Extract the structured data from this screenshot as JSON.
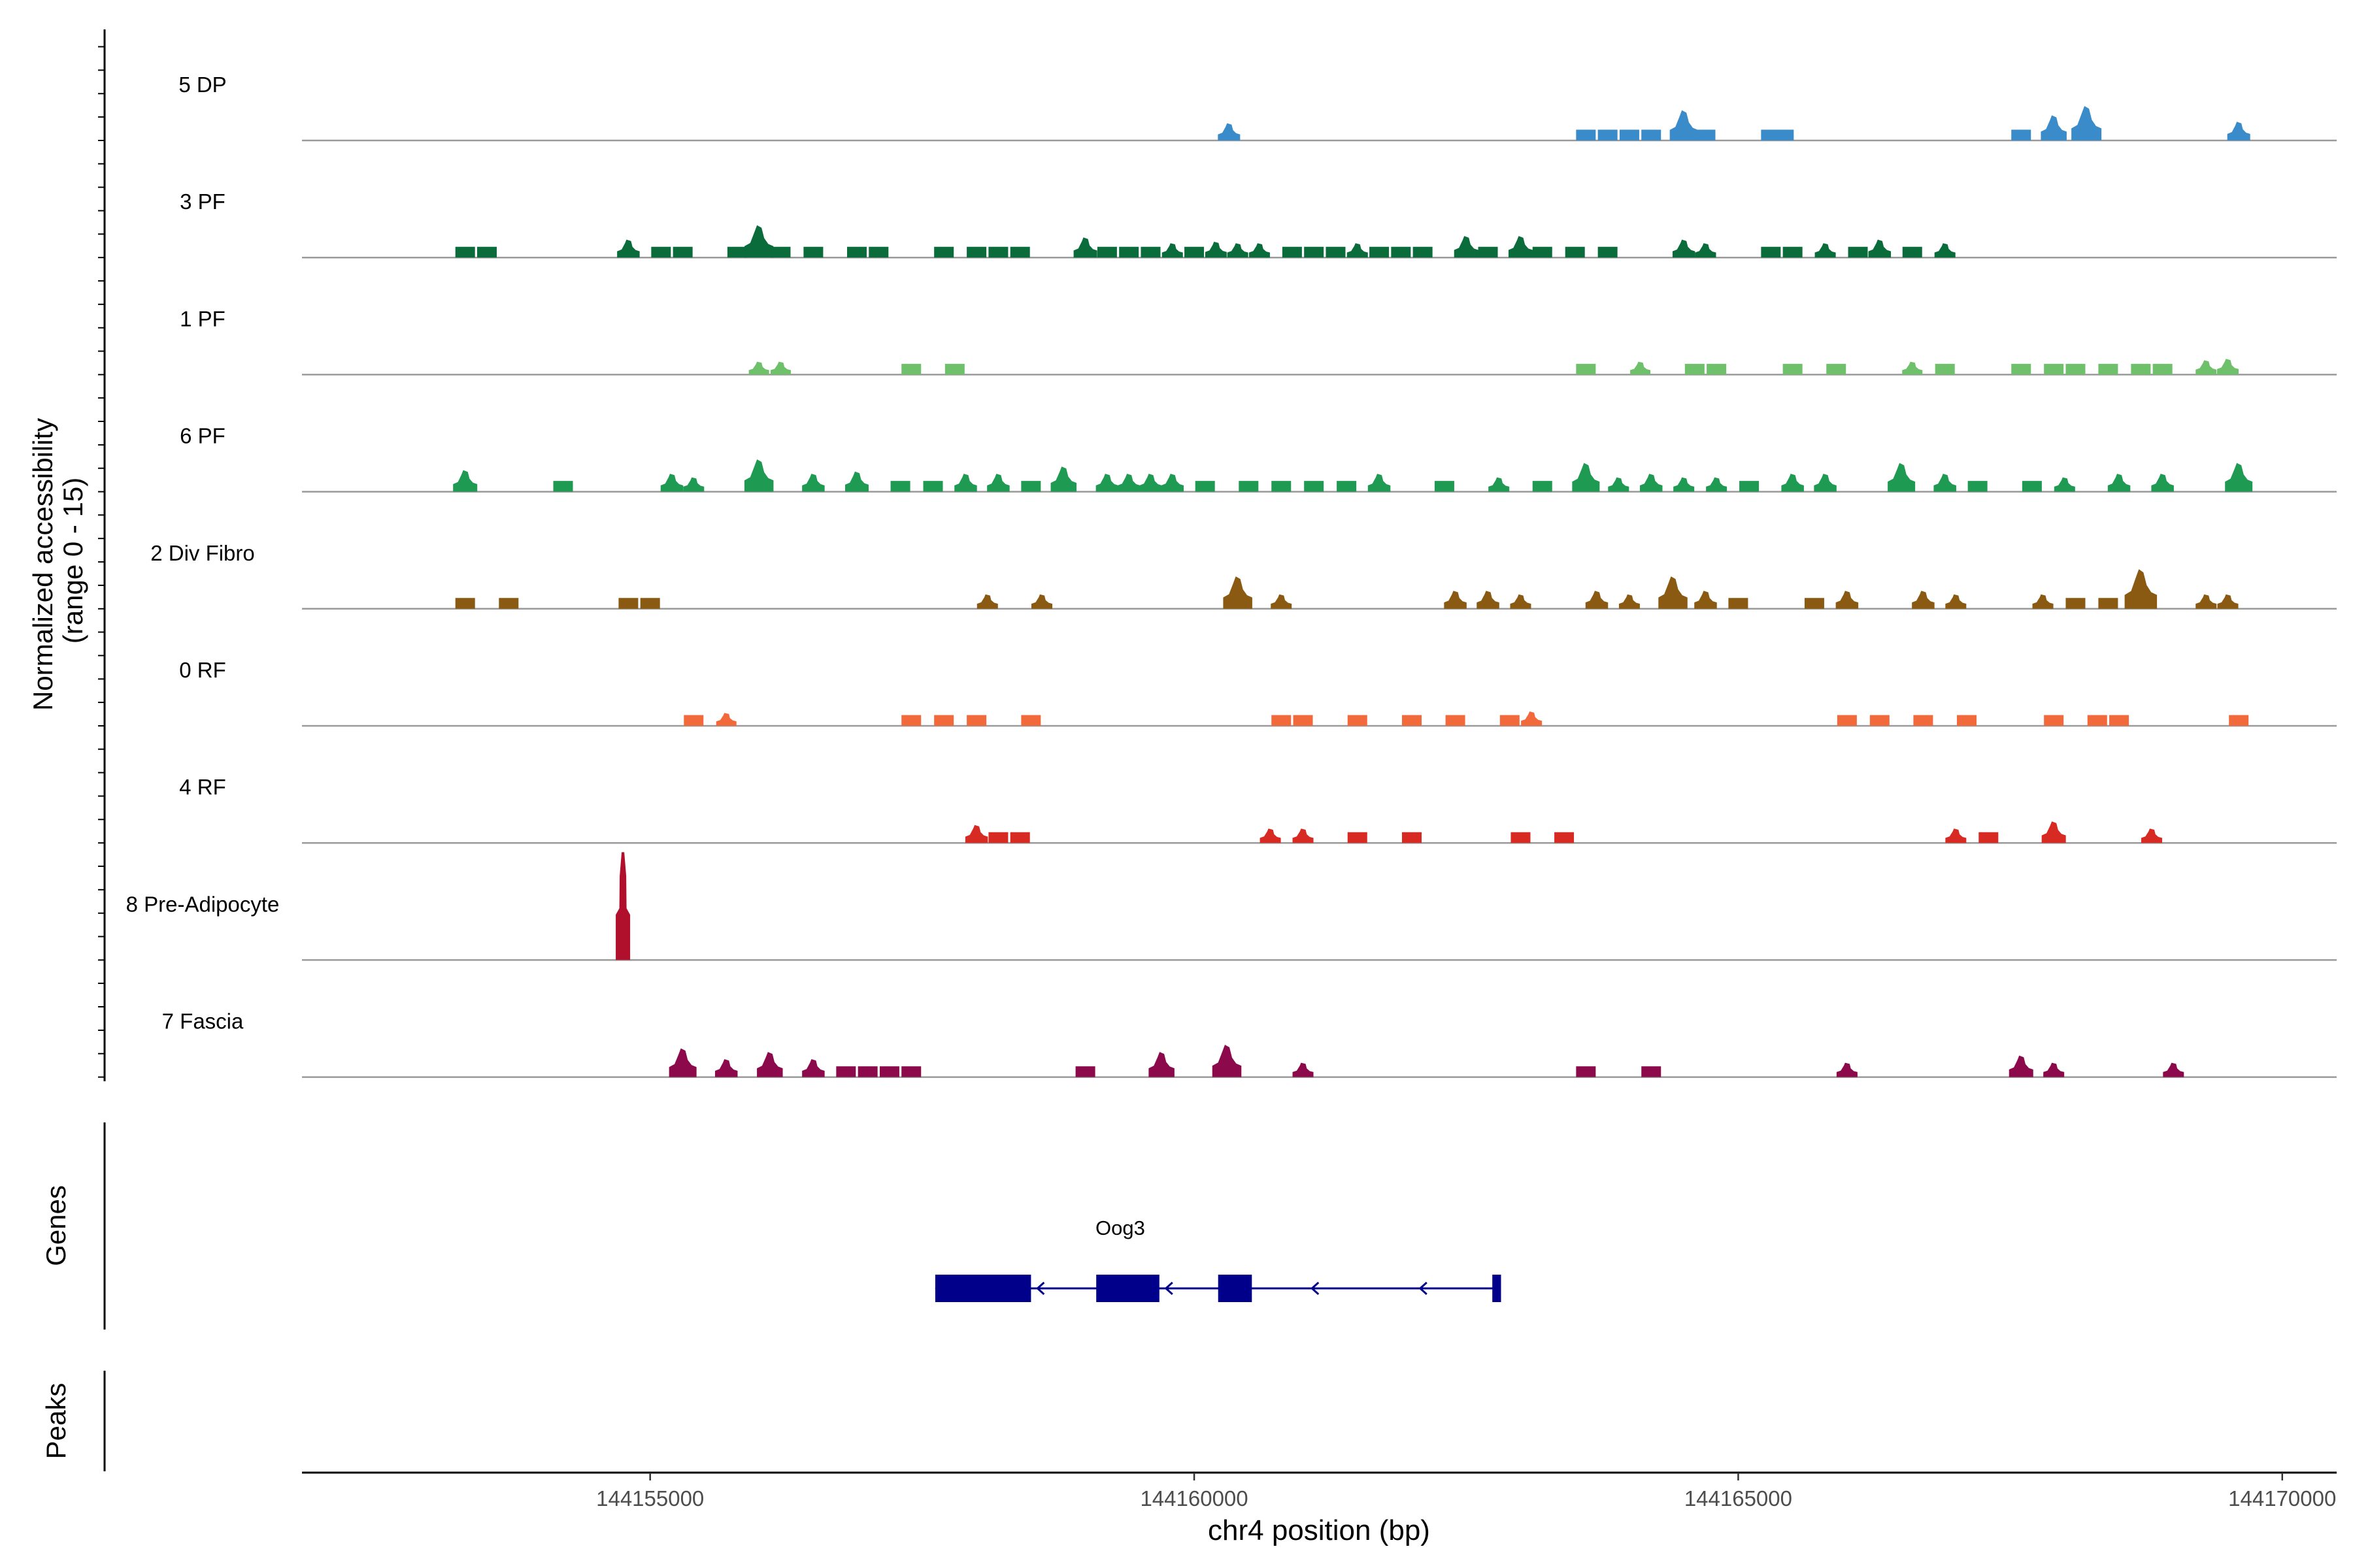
{
  "chart_data": {
    "type": "area",
    "subtype": "genome-coverage-track",
    "y_axis_label_line1": "Normalized accessibility",
    "y_axis_label_line2": "(range 0 - 15)",
    "ylim": [
      0,
      15
    ],
    "x_axis_label": "chr4 position (bp)",
    "xlim": [
      144151800,
      144170500
    ],
    "x_ticks": [
      144155000,
      144160000,
      144165000,
      144170000
    ],
    "x_tick_labels": [
      "144155000",
      "144160000",
      "144165000",
      "144170000"
    ],
    "genes_label": "Genes",
    "peaks_label": "Peaks",
    "tracks": [
      {
        "name": "5 DP",
        "color": "#3a8bc9",
        "peaks": [
          [
            144160320,
            2.4
          ],
          [
            144163600,
            1.5
          ],
          [
            144163800,
            1.5
          ],
          [
            144164000,
            1.5
          ],
          [
            144164200,
            1.5
          ],
          [
            144164500,
            4.2
          ],
          [
            144164700,
            1.5
          ],
          [
            144165300,
            1.5
          ],
          [
            144165420,
            1.5
          ],
          [
            144167600,
            1.5
          ],
          [
            144167900,
            3.5
          ],
          [
            144168200,
            4.8
          ],
          [
            144169600,
            2.6
          ]
        ]
      },
      {
        "name": "3 PF",
        "color": "#0a6b3b",
        "peaks": [
          [
            144153300,
            1.5
          ],
          [
            144153500,
            1.5
          ],
          [
            144154800,
            2.5
          ],
          [
            144155100,
            1.5
          ],
          [
            144155300,
            1.5
          ],
          [
            144155800,
            1.5
          ],
          [
            144156000,
            4.5
          ],
          [
            144156200,
            1.5
          ],
          [
            144156500,
            1.5
          ],
          [
            144156900,
            1.5
          ],
          [
            144157100,
            1.5
          ],
          [
            144157700,
            1.5
          ],
          [
            144158000,
            1.5
          ],
          [
            144158200,
            1.5
          ],
          [
            144158400,
            1.5
          ],
          [
            144159000,
            2.8
          ],
          [
            144159200,
            1.5
          ],
          [
            144159400,
            1.5
          ],
          [
            144159600,
            1.5
          ],
          [
            144159800,
            2.0
          ],
          [
            144160000,
            1.5
          ],
          [
            144160200,
            2.2
          ],
          [
            144160400,
            2.0
          ],
          [
            144160600,
            2.0
          ],
          [
            144160900,
            1.5
          ],
          [
            144161100,
            1.5
          ],
          [
            144161300,
            1.5
          ],
          [
            144161500,
            2.0
          ],
          [
            144161700,
            1.5
          ],
          [
            144161900,
            1.5
          ],
          [
            144162100,
            1.5
          ],
          [
            144162500,
            3.0
          ],
          [
            144162700,
            1.5
          ],
          [
            144163000,
            3.0
          ],
          [
            144163200,
            1.5
          ],
          [
            144163500,
            1.5
          ],
          [
            144163800,
            1.5
          ],
          [
            144164500,
            2.5
          ],
          [
            144164700,
            2.0
          ],
          [
            144165300,
            1.5
          ],
          [
            144165500,
            1.5
          ],
          [
            144165800,
            2.0
          ],
          [
            144166100,
            1.5
          ],
          [
            144166300,
            2.5
          ],
          [
            144166600,
            1.5
          ],
          [
            144166900,
            2.0
          ]
        ]
      },
      {
        "name": "1 PF",
        "color": "#6fc06a",
        "peaks": [
          [
            144156000,
            1.8
          ],
          [
            144156200,
            1.8
          ],
          [
            144157400,
            1.5
          ],
          [
            144157800,
            1.5
          ],
          [
            144163600,
            1.5
          ],
          [
            144164100,
            1.8
          ],
          [
            144164600,
            1.5
          ],
          [
            144164800,
            1.5
          ],
          [
            144165500,
            1.5
          ],
          [
            144165900,
            1.5
          ],
          [
            144166600,
            1.8
          ],
          [
            144166900,
            1.5
          ],
          [
            144167600,
            1.5
          ],
          [
            144167900,
            1.5
          ],
          [
            144168100,
            1.5
          ],
          [
            144168400,
            1.5
          ],
          [
            144168700,
            1.5
          ],
          [
            144168900,
            1.5
          ],
          [
            144169300,
            2.0
          ],
          [
            144169500,
            2.2
          ]
        ]
      },
      {
        "name": "6 PF",
        "color": "#1f9a52",
        "peaks": [
          [
            144153300,
            3.0
          ],
          [
            144154200,
            1.5
          ],
          [
            144155200,
            2.5
          ],
          [
            144155400,
            2.0
          ],
          [
            144156000,
            4.5
          ],
          [
            144156500,
            2.5
          ],
          [
            144156900,
            2.8
          ],
          [
            144157300,
            1.5
          ],
          [
            144157600,
            1.5
          ],
          [
            144157900,
            2.5
          ],
          [
            144158200,
            2.5
          ],
          [
            144158500,
            1.5
          ],
          [
            144158800,
            3.5
          ],
          [
            144159200,
            2.5
          ],
          [
            144159400,
            2.5
          ],
          [
            144159600,
            2.5
          ],
          [
            144159800,
            2.5
          ],
          [
            144160100,
            1.5
          ],
          [
            144160500,
            1.5
          ],
          [
            144160800,
            1.5
          ],
          [
            144161100,
            1.5
          ],
          [
            144161400,
            1.5
          ],
          [
            144161700,
            2.5
          ],
          [
            144162300,
            1.5
          ],
          [
            144162800,
            2.0
          ],
          [
            144163200,
            1.5
          ],
          [
            144163600,
            4.0
          ],
          [
            144163900,
            2.0
          ],
          [
            144164200,
            2.5
          ],
          [
            144164500,
            2.0
          ],
          [
            144164800,
            2.0
          ],
          [
            144165100,
            1.5
          ],
          [
            144165500,
            2.5
          ],
          [
            144165800,
            2.5
          ],
          [
            144166500,
            4.0
          ],
          [
            144166900,
            2.5
          ],
          [
            144167200,
            1.5
          ],
          [
            144167700,
            1.5
          ],
          [
            144168000,
            2.0
          ],
          [
            144168500,
            2.5
          ],
          [
            144168900,
            2.5
          ],
          [
            144169600,
            4.0
          ]
        ]
      },
      {
        "name": "2 Div Fibro",
        "color": "#8b5a12",
        "peaks": [
          [
            144153300,
            1.5
          ],
          [
            144153700,
            1.5
          ],
          [
            144154800,
            1.5
          ],
          [
            144155000,
            1.5
          ],
          [
            144158100,
            2.0
          ],
          [
            144158600,
            2.0
          ],
          [
            144160400,
            4.5
          ],
          [
            144160800,
            2.0
          ],
          [
            144162400,
            2.5
          ],
          [
            144162700,
            2.5
          ],
          [
            144163000,
            2.0
          ],
          [
            144163700,
            2.5
          ],
          [
            144164000,
            2.0
          ],
          [
            144164400,
            4.5
          ],
          [
            144164700,
            2.5
          ],
          [
            144165000,
            1.5
          ],
          [
            144165700,
            1.5
          ],
          [
            144166000,
            2.5
          ],
          [
            144166700,
            2.5
          ],
          [
            144167000,
            2.0
          ],
          [
            144167800,
            2.0
          ],
          [
            144168100,
            1.5
          ],
          [
            144168400,
            1.5
          ],
          [
            144168700,
            5.5
          ],
          [
            144169300,
            2.0
          ],
          [
            144169500,
            2.0
          ]
        ]
      },
      {
        "name": "0 RF",
        "color": "#f26a3c",
        "peaks": [
          [
            144155400,
            1.5
          ],
          [
            144155700,
            1.8
          ],
          [
            144157400,
            1.5
          ],
          [
            144157700,
            1.5
          ],
          [
            144158000,
            1.5
          ],
          [
            144158500,
            1.5
          ],
          [
            144160800,
            1.5
          ],
          [
            144161000,
            1.5
          ],
          [
            144161500,
            1.5
          ],
          [
            144162000,
            1.5
          ],
          [
            144162400,
            1.5
          ],
          [
            144162900,
            1.5
          ],
          [
            144163100,
            2.0
          ],
          [
            144166000,
            1.5
          ],
          [
            144166300,
            1.5
          ],
          [
            144166700,
            1.5
          ],
          [
            144167100,
            1.5
          ],
          [
            144167900,
            1.5
          ],
          [
            144168300,
            1.5
          ],
          [
            144168500,
            1.5
          ],
          [
            144169600,
            1.5
          ]
        ]
      },
      {
        "name": "4 RF",
        "color": "#d62a22",
        "peaks": [
          [
            144158000,
            2.5
          ],
          [
            144158200,
            1.5
          ],
          [
            144158400,
            1.5
          ],
          [
            144160700,
            2.0
          ],
          [
            144161000,
            2.0
          ],
          [
            144161500,
            1.5
          ],
          [
            144162000,
            1.5
          ],
          [
            144163000,
            1.5
          ],
          [
            144163400,
            1.5
          ],
          [
            144167000,
            2.0
          ],
          [
            144167300,
            1.5
          ],
          [
            144167900,
            3.0
          ],
          [
            144168800,
            2.0
          ]
        ]
      },
      {
        "name": "8 Pre-Adipocyte",
        "color": "#b0102c",
        "peaks": [
          [
            144154750,
            15
          ]
        ]
      },
      {
        "name": "7 Fascia",
        "color": "#8c0a4b",
        "peaks": [
          [
            144155300,
            4.0
          ],
          [
            144155700,
            2.5
          ],
          [
            144156100,
            3.5
          ],
          [
            144156500,
            2.5
          ],
          [
            144156800,
            1.5
          ],
          [
            144157000,
            1.5
          ],
          [
            144157200,
            1.5
          ],
          [
            144157400,
            1.5
          ],
          [
            144159000,
            1.5
          ],
          [
            144159700,
            3.5
          ],
          [
            144160300,
            4.5
          ],
          [
            144161000,
            2.0
          ],
          [
            144163600,
            1.5
          ],
          [
            144164200,
            1.5
          ],
          [
            144166000,
            2.0
          ],
          [
            144167600,
            3.0
          ],
          [
            144167900,
            2.0
          ],
          [
            144169000,
            2.0
          ]
        ]
      }
    ],
    "genes": [
      {
        "name": "Oog3",
        "strand": "-",
        "start": 144157620,
        "end": 144162820,
        "exons": [
          [
            144157620,
            144158500
          ],
          [
            144159100,
            144159680
          ],
          [
            144160220,
            144160530
          ],
          [
            144162740,
            144162820
          ]
        ],
        "color": "#00008b"
      }
    ]
  }
}
